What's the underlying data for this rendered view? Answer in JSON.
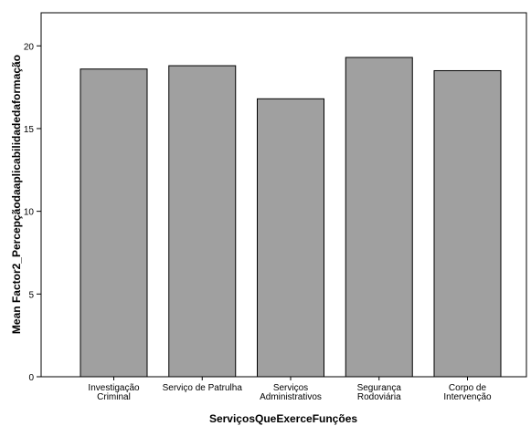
{
  "chart_data": {
    "type": "bar",
    "categories": [
      [
        "Investigação",
        "Criminal"
      ],
      [
        "Serviço de Patrulha"
      ],
      [
        "Serviços",
        "Administrativos"
      ],
      [
        "Segurança",
        "Rodoviária"
      ],
      [
        "Corpo de",
        "Intervenção"
      ]
    ],
    "values": [
      18.6,
      18.8,
      16.8,
      19.3,
      18.5
    ],
    "xlabel": "ServiçosQueExerceFunções",
    "ylabel": "Mean Factor2_Percepçãodaaplicabilidadedaformação",
    "ylim": [
      0,
      22
    ],
    "yticks": [
      0,
      5,
      10,
      15,
      20
    ],
    "grid": false,
    "colors": {
      "bar_fill": "#a0a0a0",
      "bar_stroke": "#000000",
      "axis": "#000000"
    }
  }
}
